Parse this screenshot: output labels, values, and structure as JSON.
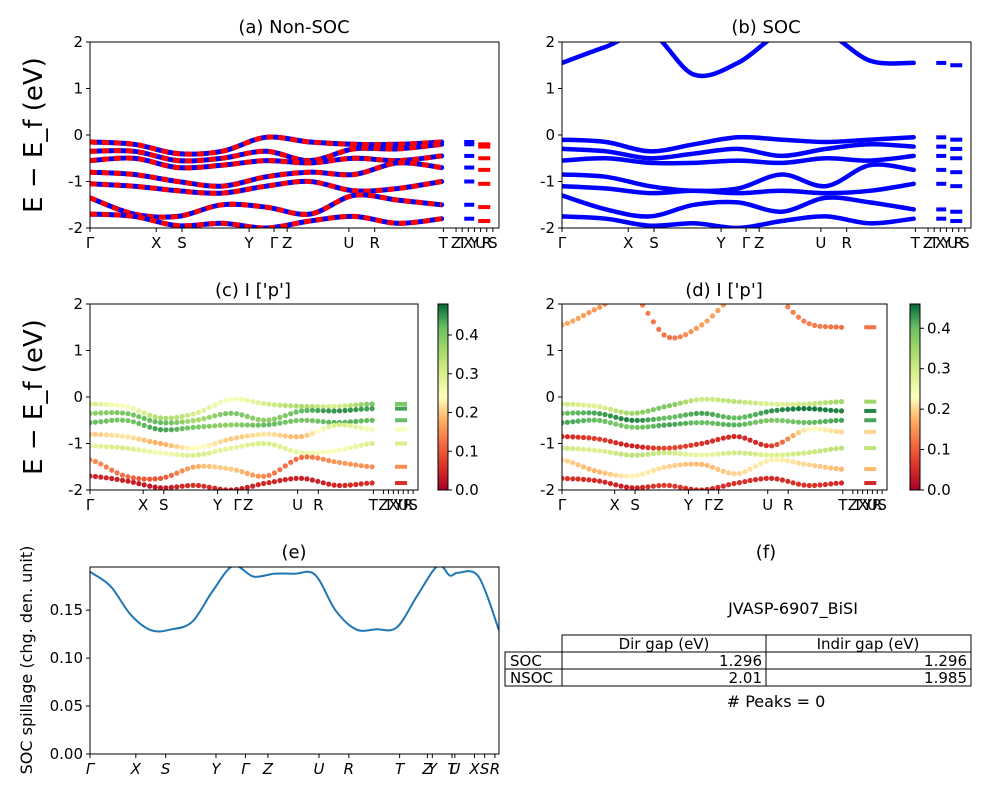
{
  "figure_id": "JVASP-6907_BiSI",
  "ylabel_band": "E − E_f (eV)",
  "ylabel_spillage": "SOC spillage (chg. den. unit)",
  "colorscale": {
    "low": "#a50026",
    "mid": "#ffffbf",
    "high": "#006837"
  },
  "table": {
    "headers": [
      "",
      "Dir gap (eV)",
      "Indir gap (eV)"
    ],
    "rows": [
      [
        "SOC",
        "1.296",
        "1.296"
      ],
      [
        "NSOC",
        "2.01",
        "1.985"
      ]
    ],
    "footer": "# Peaks = 0"
  },
  "chart_data": [
    {
      "panel": "a",
      "type": "line",
      "title": "(a) Non-SOC",
      "ylim": [
        -2,
        2
      ],
      "yticks": [
        -2,
        -1,
        0,
        1,
        2
      ],
      "kpoints": [
        "Γ",
        "X",
        "S",
        "Y",
        "Γ",
        "Z",
        "U",
        "R",
        "T",
        "Z",
        "T",
        "X",
        "Y",
        "U",
        "R",
        "S"
      ],
      "colors": [
        "#0000ff",
        "#ff0000"
      ],
      "bands": [
        [
          -0.15,
          -0.2,
          -0.4,
          -0.35,
          -0.05,
          -0.15,
          -0.2,
          -0.2,
          -0.15
        ],
        [
          -0.35,
          -0.35,
          -0.55,
          -0.5,
          -0.35,
          -0.55,
          -0.3,
          -0.3,
          -0.2
        ],
        [
          -0.55,
          -0.5,
          -0.7,
          -0.65,
          -0.55,
          -0.6,
          -0.5,
          -0.55,
          -0.45
        ],
        [
          -0.8,
          -0.85,
          -1.0,
          -1.1,
          -0.9,
          -0.8,
          -0.85,
          -0.6,
          -0.7
        ],
        [
          -1.05,
          -1.1,
          -1.2,
          -1.25,
          -1.1,
          -1.0,
          -1.2,
          -1.15,
          -1.0
        ],
        [
          -1.35,
          -1.7,
          -1.75,
          -1.5,
          -1.55,
          -1.7,
          -1.3,
          -1.4,
          -1.5
        ],
        [
          -1.7,
          -1.75,
          -1.95,
          -1.9,
          -2.0,
          -1.85,
          -1.75,
          -1.9,
          -1.8
        ]
      ]
    },
    {
      "panel": "b",
      "type": "line",
      "title": "(b) SOC",
      "ylim": [
        -2,
        2
      ],
      "yticks": [
        -2,
        -1,
        0,
        1,
        2
      ],
      "kpoints": [
        "Γ",
        "X",
        "S",
        "Y",
        "Γ",
        "Z",
        "U",
        "R",
        "T",
        "Z",
        "T",
        "X",
        "Y",
        "U",
        "R",
        "S"
      ],
      "colors": [
        "#0000ff"
      ],
      "bands": [
        [
          1.55,
          1.9,
          2.2,
          1.3,
          1.55,
          2.2,
          2.2,
          1.6,
          1.55
        ],
        [
          -0.1,
          -0.15,
          -0.35,
          -0.2,
          -0.05,
          -0.1,
          -0.15,
          -0.1,
          -0.05
        ],
        [
          -0.3,
          -0.35,
          -0.5,
          -0.4,
          -0.3,
          -0.45,
          -0.3,
          -0.2,
          -0.25
        ],
        [
          -0.55,
          -0.5,
          -0.6,
          -0.6,
          -0.55,
          -0.6,
          -0.5,
          -0.55,
          -0.45
        ],
        [
          -0.85,
          -0.9,
          -1.1,
          -1.2,
          -1.15,
          -0.85,
          -1.1,
          -0.65,
          -0.75
        ],
        [
          -1.1,
          -1.15,
          -1.25,
          -1.2,
          -1.25,
          -1.2,
          -1.25,
          -1.2,
          -1.05
        ],
        [
          -1.3,
          -1.6,
          -1.75,
          -1.5,
          -1.45,
          -1.65,
          -1.35,
          -1.45,
          -1.6
        ],
        [
          -1.75,
          -1.8,
          -1.95,
          -1.9,
          -2.0,
          -1.85,
          -1.75,
          -1.9,
          -1.8
        ]
      ]
    },
    {
      "panel": "c",
      "type": "scatter",
      "title": "(c)  I ['p']",
      "ylim": [
        -2,
        2
      ],
      "yticks": [
        -2,
        -1,
        0,
        1,
        2
      ],
      "cbar": {
        "range": [
          0,
          0.48
        ],
        "ticks": [
          0.0,
          0.1,
          0.2,
          0.3,
          0.4
        ]
      },
      "kpoints": [
        "Γ",
        "X",
        "S",
        "Y",
        "Γ",
        "Z",
        "U",
        "R",
        "T",
        "Z",
        "T",
        "X",
        "Y",
        "U",
        "R",
        "S"
      ],
      "bands": [
        {
          "e": [
            -0.15,
            -0.2,
            -0.45,
            -0.35,
            -0.05,
            -0.15,
            -0.2,
            -0.2,
            -0.15
          ],
          "w": [
            0.3,
            0.25,
            0.35,
            0.3,
            0.25,
            0.3,
            0.35,
            0.3,
            0.4
          ]
        },
        {
          "e": [
            -0.35,
            -0.35,
            -0.55,
            -0.5,
            -0.35,
            -0.5,
            -0.3,
            -0.3,
            -0.25
          ],
          "w": [
            0.38,
            0.4,
            0.42,
            0.36,
            0.4,
            0.38,
            0.42,
            0.45,
            0.44
          ]
        },
        {
          "e": [
            -0.55,
            -0.5,
            -0.7,
            -0.65,
            -0.6,
            -0.6,
            -0.5,
            -0.55,
            -0.5
          ],
          "w": [
            0.42,
            0.4,
            0.44,
            0.4,
            0.38,
            0.42,
            0.4,
            0.43,
            0.42
          ]
        },
        {
          "e": [
            -0.8,
            -0.85,
            -1.0,
            -1.1,
            -0.9,
            -0.8,
            -0.85,
            -0.6,
            -0.7
          ],
          "w": [
            0.2,
            0.22,
            0.18,
            0.24,
            0.2,
            0.22,
            0.19,
            0.3,
            0.25
          ]
        },
        {
          "e": [
            -1.05,
            -1.1,
            -1.2,
            -1.25,
            -1.1,
            -1.0,
            -1.2,
            -1.15,
            -1.0
          ],
          "w": [
            0.28,
            0.3,
            0.26,
            0.3,
            0.28,
            0.3,
            0.27,
            0.25,
            0.3
          ]
        },
        {
          "e": [
            -1.35,
            -1.7,
            -1.75,
            -1.5,
            -1.55,
            -1.7,
            -1.3,
            -1.4,
            -1.5
          ],
          "w": [
            0.15,
            0.12,
            0.1,
            0.18,
            0.2,
            0.14,
            0.12,
            0.16,
            0.15
          ]
        },
        {
          "e": [
            -1.7,
            -1.8,
            -1.95,
            -1.9,
            -2.0,
            -1.85,
            -1.75,
            -1.9,
            -1.85
          ],
          "w": [
            0.05,
            0.04,
            0.03,
            0.06,
            0.04,
            0.05,
            0.04,
            0.05,
            0.06
          ]
        }
      ]
    },
    {
      "panel": "d",
      "type": "scatter",
      "title": "(d) I ['p']",
      "ylim": [
        -2,
        2
      ],
      "yticks": [
        -2,
        -1,
        0,
        1,
        2
      ],
      "cbar": {
        "range": [
          0,
          0.46
        ],
        "ticks": [
          0.0,
          0.1,
          0.2,
          0.3,
          0.4
        ]
      },
      "kpoints": [
        "Γ",
        "X",
        "S",
        "Y",
        "Γ",
        "Z",
        "U",
        "R",
        "T",
        "Z",
        "T",
        "X",
        "Y",
        "U",
        "R",
        "S"
      ],
      "bands": [
        {
          "e": [
            1.55,
            1.9,
            2.2,
            1.3,
            1.55,
            2.2,
            2.2,
            1.6,
            1.5
          ],
          "w": [
            0.17,
            0.15,
            0.14,
            0.12,
            0.16,
            0.15,
            0.14,
            0.13,
            0.12
          ]
        },
        {
          "e": [
            -0.15,
            -0.2,
            -0.35,
            -0.2,
            -0.05,
            -0.1,
            -0.15,
            -0.15,
            -0.1
          ],
          "w": [
            0.3,
            0.28,
            0.35,
            0.38,
            0.3,
            0.32,
            0.28,
            0.3,
            0.35
          ]
        },
        {
          "e": [
            -0.35,
            -0.35,
            -0.5,
            -0.45,
            -0.35,
            -0.45,
            -0.3,
            -0.25,
            -0.3
          ],
          "w": [
            0.4,
            0.42,
            0.44,
            0.4,
            0.42,
            0.4,
            0.43,
            0.45,
            0.44
          ]
        },
        {
          "e": [
            -0.55,
            -0.5,
            -0.65,
            -0.6,
            -0.55,
            -0.6,
            -0.5,
            -0.55,
            -0.5
          ],
          "w": [
            0.42,
            0.4,
            0.38,
            0.42,
            0.4,
            0.41,
            0.38,
            0.4,
            0.42
          ]
        },
        {
          "e": [
            -0.85,
            -0.9,
            -1.05,
            -1.1,
            -1.0,
            -0.85,
            -1.05,
            -0.7,
            -0.75
          ],
          "w": [
            0.05,
            0.07,
            0.04,
            0.08,
            0.06,
            0.05,
            0.07,
            0.22,
            0.2
          ]
        },
        {
          "e": [
            -1.1,
            -1.15,
            -1.25,
            -1.2,
            -1.25,
            -1.2,
            -1.25,
            -1.2,
            -1.1
          ],
          "w": [
            0.3,
            0.28,
            0.32,
            0.3,
            0.26,
            0.3,
            0.28,
            0.3,
            0.32
          ]
        },
        {
          "e": [
            -1.35,
            -1.6,
            -1.7,
            -1.5,
            -1.45,
            -1.65,
            -1.35,
            -1.45,
            -1.55
          ],
          "w": [
            0.2,
            0.18,
            0.22,
            0.2,
            0.18,
            0.2,
            0.22,
            0.2,
            0.18
          ]
        },
        {
          "e": [
            -1.75,
            -1.8,
            -1.95,
            -1.9,
            -2.0,
            -1.85,
            -1.75,
            -1.9,
            -1.85
          ],
          "w": [
            0.06,
            0.05,
            0.04,
            0.07,
            0.05,
            0.06,
            0.05,
            0.06,
            0.05
          ]
        }
      ]
    },
    {
      "panel": "e",
      "type": "line",
      "title": "(e)",
      "ylabel": "SOC spillage (chg. den. unit)",
      "ylim": [
        0.0,
        0.195
      ],
      "yticks": [
        0.0,
        0.05,
        0.1,
        0.15
      ],
      "kpoints": [
        "Γ",
        "X",
        "S",
        "Y",
        "Γ",
        "Z",
        "U",
        "R",
        "T",
        "Z",
        "Y",
        "T",
        "U",
        "X",
        "S",
        "R"
      ],
      "x": [
        0.0,
        0.05,
        0.1,
        0.15,
        0.2,
        0.25,
        0.3,
        0.35,
        0.4,
        0.45,
        0.5,
        0.55,
        0.6,
        0.65,
        0.7,
        0.75,
        0.8,
        0.85,
        0.88,
        0.9,
        0.95,
        1.0
      ],
      "values": [
        0.19,
        0.175,
        0.145,
        0.129,
        0.13,
        0.138,
        0.17,
        0.196,
        0.185,
        0.188,
        0.188,
        0.187,
        0.15,
        0.13,
        0.13,
        0.132,
        0.165,
        0.196,
        0.186,
        0.189,
        0.185,
        0.129
      ],
      "color": "#1f77b4"
    }
  ]
}
